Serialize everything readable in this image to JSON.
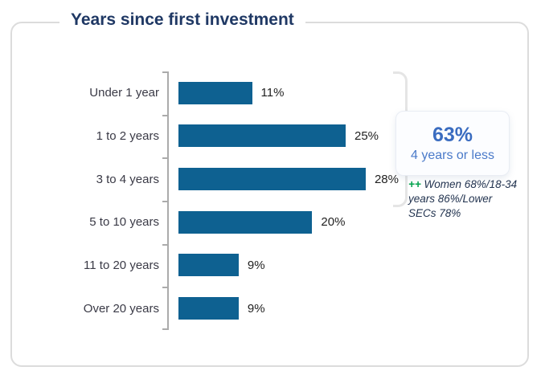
{
  "title": "Years since first investment",
  "chart_data": {
    "type": "bar",
    "orientation": "horizontal",
    "title": "Years since first investment",
    "categories": [
      "Under 1 year",
      "1 to 2 years",
      "3 to 4 years",
      "5 to 10 years",
      "11 to 20 years",
      "Over 20 years"
    ],
    "values": [
      11,
      25,
      28,
      20,
      9,
      9
    ],
    "value_labels": [
      "11%",
      "25%",
      "28%",
      "20%",
      "9%",
      "9%"
    ],
    "unit": "%",
    "xlabel": "",
    "ylabel": "",
    "grid": false,
    "value_labels_shown": true,
    "bar_color": "#0e6191"
  },
  "callout": {
    "value": "63%",
    "label": "4 years or less",
    "bracket_covers": [
      "Under 1 year",
      "1 to 2 years",
      "3 to 4 years"
    ]
  },
  "annotation": {
    "marker": "++",
    "text": "Women 68%/18-34 years 86%/Lower SECs 78%"
  },
  "colors": {
    "bar": "#0e6191",
    "title": "#1f3864",
    "callout_value": "#3a6cc0",
    "callout_label": "#4a7ac9",
    "annotation_marker": "#00a14b",
    "annotation_text": "#233450",
    "card_border": "#dcdcdc",
    "axis": "#ababab"
  }
}
